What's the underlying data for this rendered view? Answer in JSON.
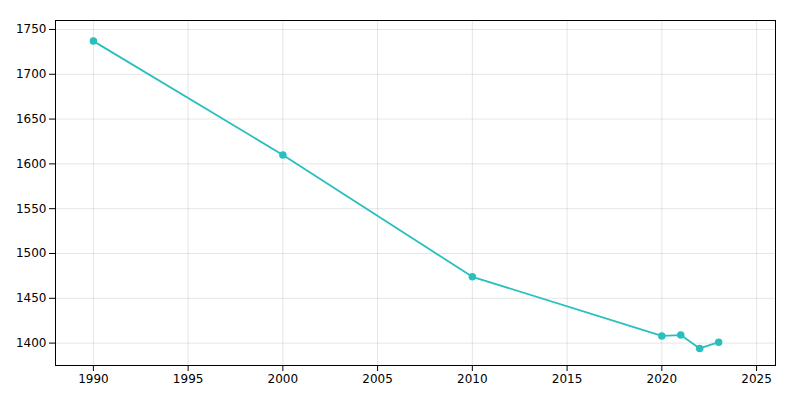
{
  "chart_data": {
    "type": "line",
    "x": [
      1990,
      2000,
      2010,
      2020,
      2021,
      2022,
      2023
    ],
    "values": [
      1737,
      1610,
      1474,
      1408,
      1409,
      1394,
      1401
    ],
    "color": "#2abfbf",
    "marker": "circle",
    "xlim": [
      1988,
      2026
    ],
    "ylim": [
      1375,
      1760
    ],
    "xticks": [
      1990,
      1995,
      2000,
      2005,
      2010,
      2015,
      2020,
      2025
    ],
    "yticks": [
      1400,
      1450,
      1500,
      1550,
      1600,
      1650,
      1700,
      1750
    ],
    "grid": true
  }
}
